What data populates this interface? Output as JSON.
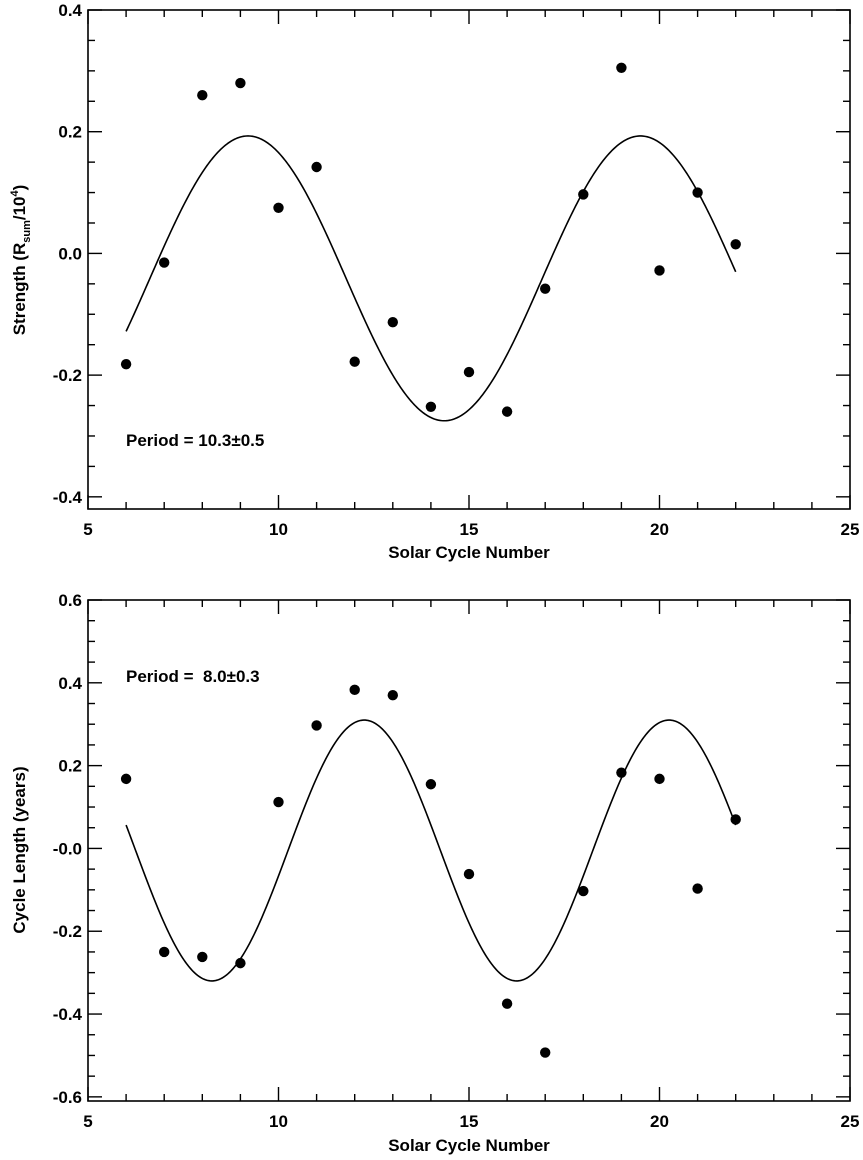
{
  "chart_data": [
    {
      "type": "scatter",
      "xlabel": "Solar Cycle Number",
      "ylabel": {
        "main": "Strength (R",
        "sub": "sum",
        "mid": "/10",
        "sup": "4",
        "end": ")"
      },
      "xlim": [
        5,
        25
      ],
      "ylim": [
        -0.42,
        0.4
      ],
      "xticks": [
        5,
        10,
        15,
        20,
        25
      ],
      "yticks": [
        -0.4,
        -0.2,
        0.0,
        0.2,
        0.4
      ],
      "ytick_labels": [
        "-0.4",
        "-0.2",
        "0.0",
        "0.2",
        "0.4"
      ],
      "annotation": "Period = 10.3±0.5",
      "series": [
        {
          "kind": "points",
          "x": [
            6,
            7,
            8,
            9,
            10,
            11,
            12,
            13,
            14,
            15,
            16,
            17,
            18,
            19,
            20,
            21,
            22
          ],
          "y": [
            -0.182,
            -0.015,
            0.26,
            0.28,
            0.075,
            0.142,
            -0.178,
            -0.113,
            -0.252,
            -0.195,
            -0.26,
            -0.058,
            0.097,
            0.305,
            -0.028,
            0.1,
            0.015
          ]
        },
        {
          "kind": "fit",
          "period": 10.3,
          "offset": -0.041,
          "amplitude": 0.234,
          "peak_x": 9.2,
          "x_range": [
            6,
            22
          ]
        }
      ]
    },
    {
      "type": "scatter",
      "xlabel": "Solar Cycle Number",
      "ylabel": "Cycle Length (years)",
      "xlim": [
        5,
        25
      ],
      "ylim": [
        -0.61,
        0.6
      ],
      "xticks": [
        5,
        10,
        15,
        20,
        25
      ],
      "yticks": [
        -0.6,
        -0.4,
        -0.2,
        0.0,
        0.2,
        0.4,
        0.6
      ],
      "ytick_labels": [
        "-0.6",
        "-0.4",
        "-0.2",
        "-0.0",
        "0.2",
        "0.4",
        "0.6"
      ],
      "annotation": "Period =  8.0±0.3",
      "series": [
        {
          "kind": "points",
          "x": [
            6,
            7,
            8,
            9,
            10,
            11,
            12,
            13,
            14,
            15,
            16,
            17,
            18,
            19,
            20,
            21,
            22
          ],
          "y": [
            0.168,
            -0.25,
            -0.262,
            -0.277,
            0.112,
            0.297,
            0.383,
            0.37,
            0.155,
            -0.062,
            -0.375,
            -0.493,
            -0.103,
            0.183,
            0.168,
            -0.097,
            0.07
          ]
        },
        {
          "kind": "fit",
          "period": 8.0,
          "offset": -0.005,
          "amplitude": 0.315,
          "peak_x": 12.25,
          "x_range": [
            6,
            22
          ]
        }
      ]
    }
  ]
}
